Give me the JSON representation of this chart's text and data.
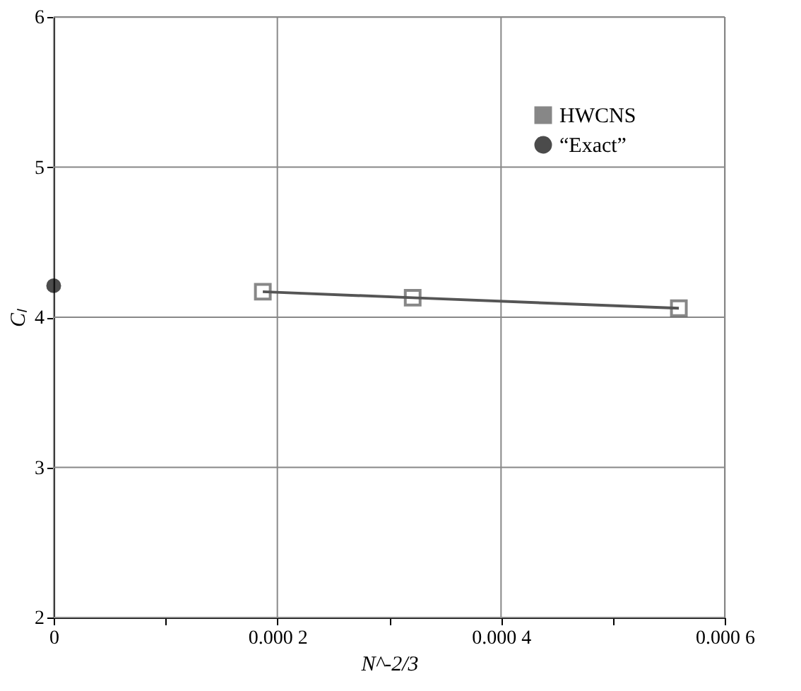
{
  "chart_data": {
    "type": "line",
    "xlabel": "N^-2/3",
    "ylabel": "Cₗ",
    "xlim": [
      0,
      0.0006
    ],
    "ylim": [
      2,
      6
    ],
    "xticks": [
      0,
      {
        "value": 0.0001,
        "label": null
      },
      0.0002,
      {
        "value": 0.0003,
        "label": null
      },
      0.0004,
      {
        "value": 0.0005,
        "label": null
      },
      0.0006
    ],
    "yticks": [
      2,
      3,
      4,
      5,
      6
    ],
    "grid": true,
    "legend": "top right",
    "series": [
      {
        "name": "HWCNS",
        "marker": "square",
        "color": "#555555",
        "x": [
          0.000187,
          0.000321,
          0.000559
        ],
        "values": [
          4.17,
          4.13,
          4.06
        ]
      },
      {
        "name": "“Exact”",
        "type": "scatter",
        "marker": "circle",
        "color": "#000000",
        "x": [
          0
        ],
        "values": [
          4.21
        ]
      }
    ]
  }
}
